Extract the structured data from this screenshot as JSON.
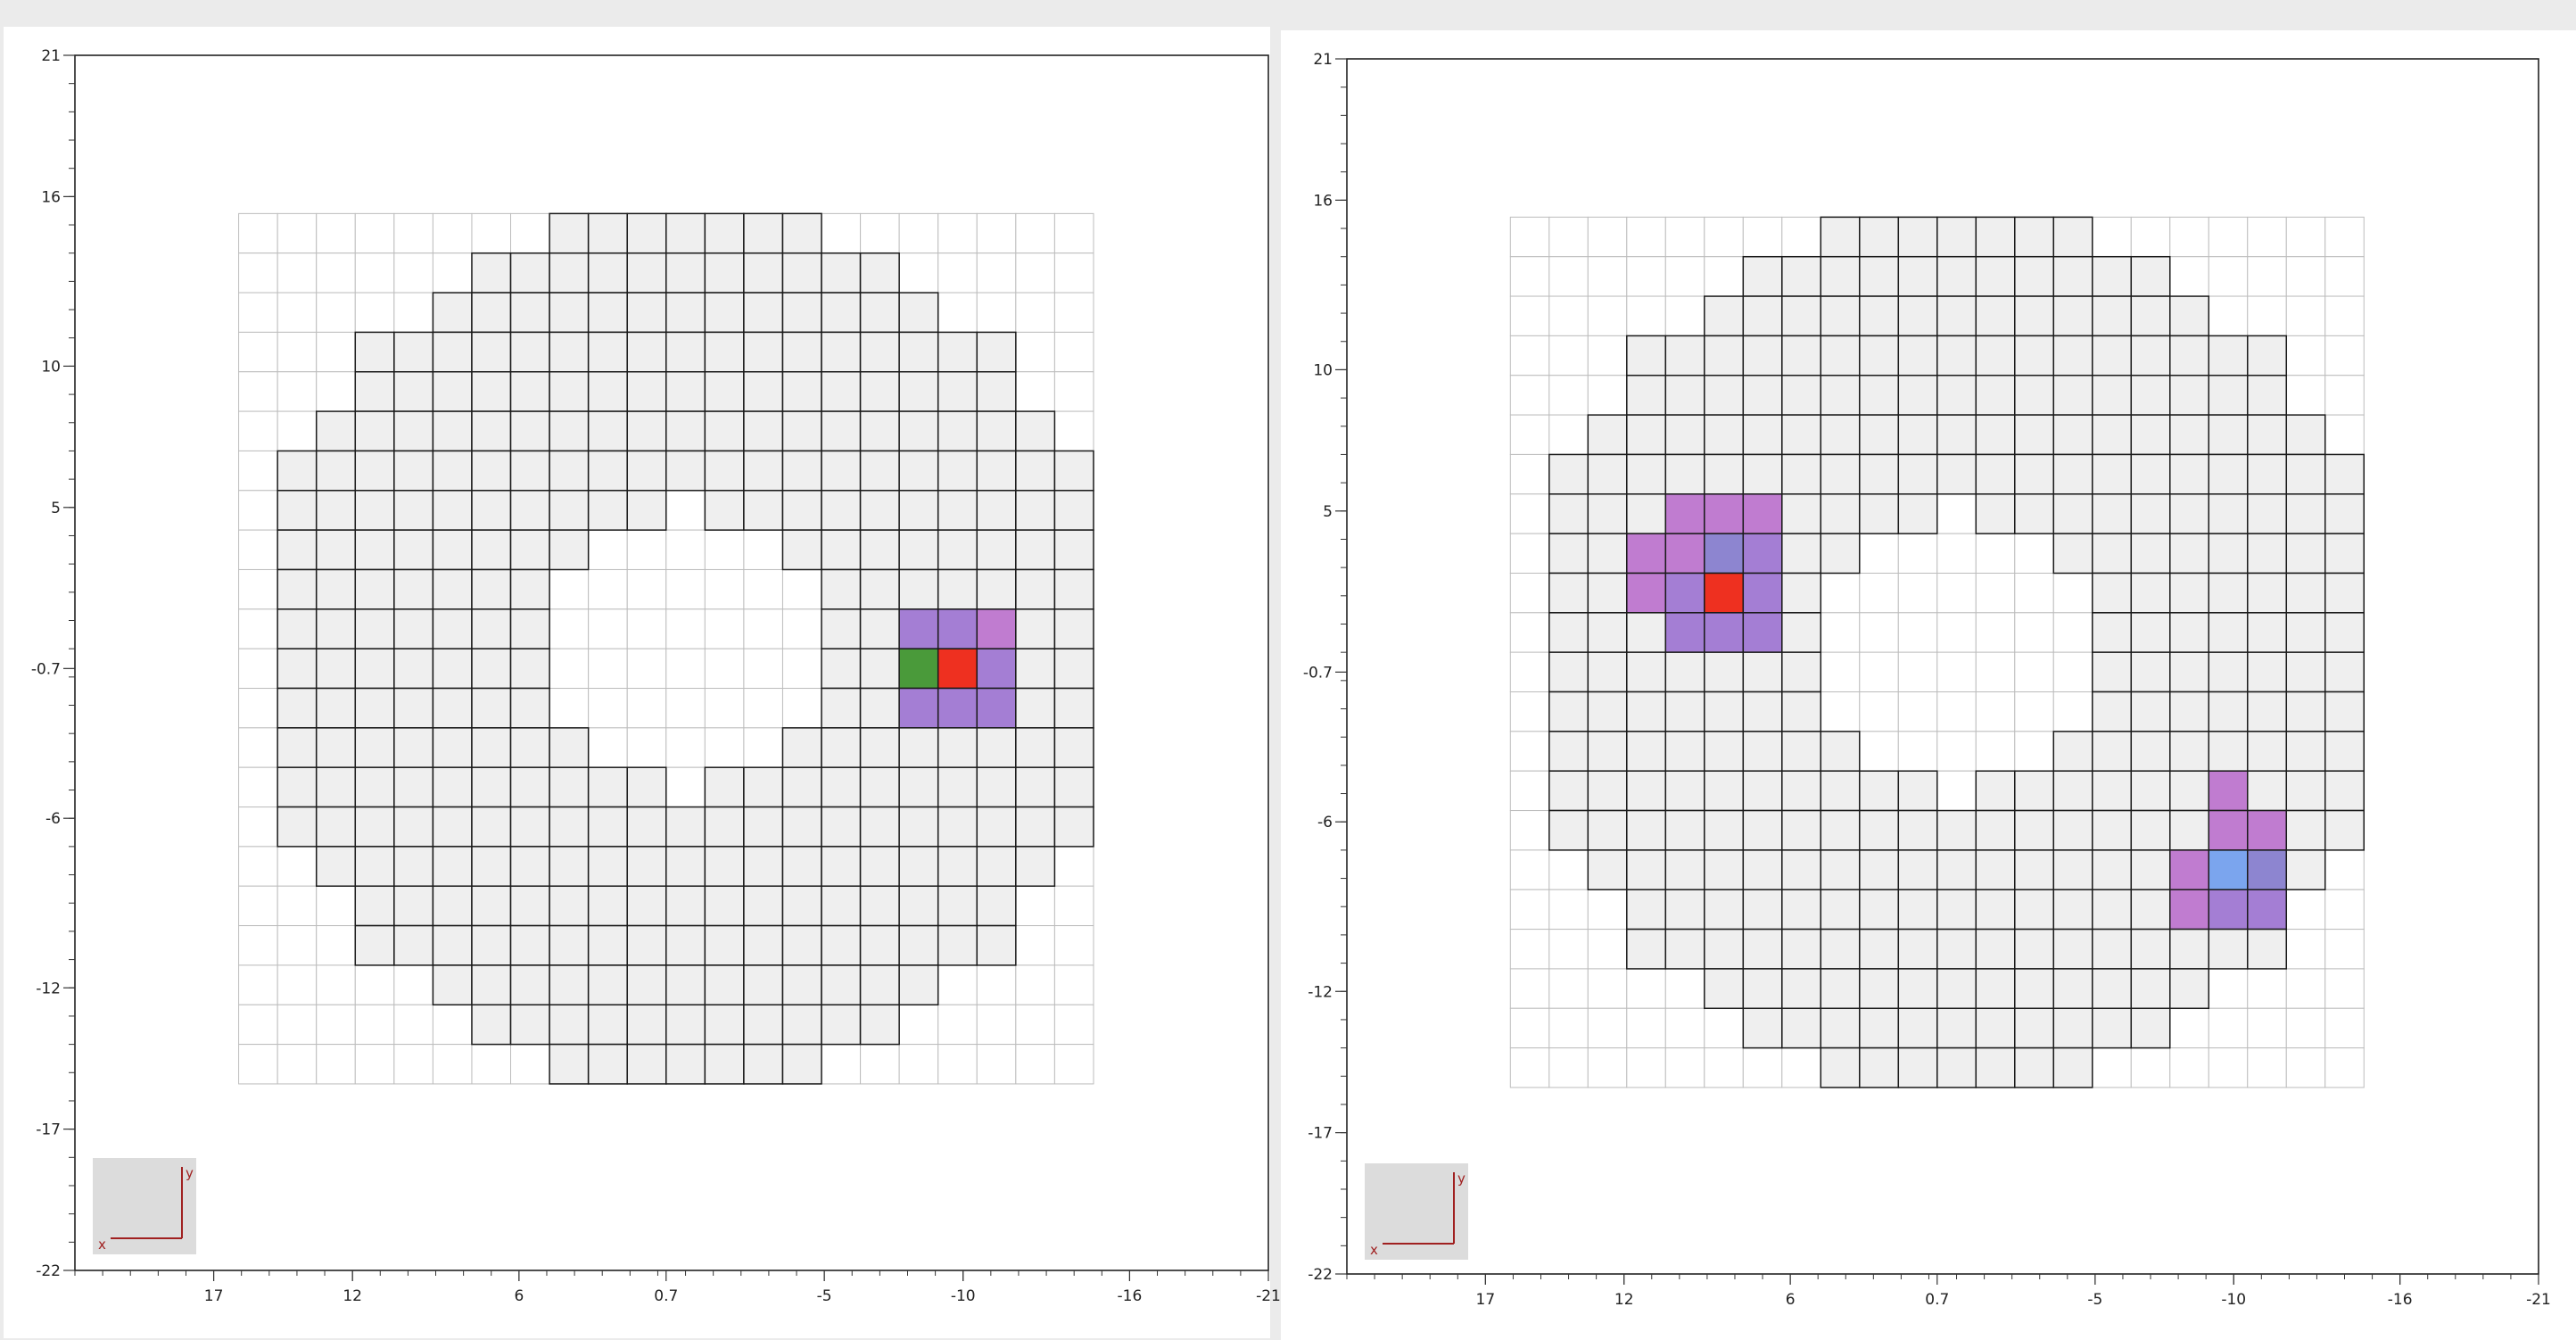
{
  "chart_data": [
    {
      "type": "heatmap",
      "title": "",
      "xlabel": "",
      "ylabel": "",
      "x_ticks": [
        "17",
        "12",
        "6",
        "0.7",
        "-5",
        "-10",
        "-16",
        "-21"
      ],
      "y_ticks": [
        "21",
        "16",
        "10",
        "5",
        "-0.7",
        "-6",
        "-12",
        "-17",
        "-22"
      ],
      "xlim": [
        22,
        -21
      ],
      "ylim": [
        -22,
        21
      ],
      "grid": {
        "cols": 22,
        "rows": 22,
        "cell_size": 1.4,
        "col0_center": 15.4,
        "row0_center": 14.7
      },
      "ring": {
        "inner_radius": 5.0,
        "outer_radius": 15.4
      },
      "cell_colors": {
        "default": "#efefef",
        "green": "#4a9a3a",
        "red": "#ee3020",
        "pink": "#c07cd0",
        "lavender": "#a47ed4",
        "periwinkle": "#8d85d0",
        "blue": "#7ba5ee"
      },
      "highlights": [
        {
          "col": 17,
          "row": 11,
          "color": "green"
        },
        {
          "col": 18,
          "row": 11,
          "color": "red"
        },
        {
          "col": 17,
          "row": 10,
          "color": "lavender"
        },
        {
          "col": 18,
          "row": 10,
          "color": "lavender"
        },
        {
          "col": 19,
          "row": 10,
          "color": "pink"
        },
        {
          "col": 19,
          "row": 11,
          "color": "lavender"
        },
        {
          "col": 17,
          "row": 12,
          "color": "lavender"
        },
        {
          "col": 18,
          "row": 12,
          "color": "lavender"
        },
        {
          "col": 19,
          "row": 12,
          "color": "lavender"
        }
      ],
      "axis_gizmo": {
        "x": "x",
        "y": "y"
      }
    },
    {
      "type": "heatmap",
      "title": "",
      "xlabel": "",
      "ylabel": "",
      "x_ticks": [
        "17",
        "12",
        "6",
        "0.7",
        "-5",
        "-10",
        "-16",
        "-21"
      ],
      "y_ticks": [
        "21",
        "16",
        "10",
        "5",
        "-0.7",
        "-6",
        "-12",
        "-17",
        "-22"
      ],
      "xlim": [
        22,
        -21
      ],
      "ylim": [
        -22,
        21
      ],
      "grid": {
        "cols": 22,
        "rows": 22,
        "cell_size": 1.4,
        "col0_center": 15.4,
        "row0_center": 14.7
      },
      "ring": {
        "inner_radius": 5.0,
        "outer_radius": 15.4
      },
      "cell_colors": {
        "default": "#efefef",
        "green": "#4a9a3a",
        "red": "#ee3020",
        "pink": "#c07cd0",
        "lavender": "#a47ed4",
        "periwinkle": "#8d85d0",
        "blue": "#7ba5ee"
      },
      "highlights": [
        {
          "col": 4,
          "row": 7,
          "color": "pink"
        },
        {
          "col": 5,
          "row": 7,
          "color": "pink"
        },
        {
          "col": 6,
          "row": 7,
          "color": "pink"
        },
        {
          "col": 3,
          "row": 8,
          "color": "pink"
        },
        {
          "col": 4,
          "row": 8,
          "color": "pink"
        },
        {
          "col": 5,
          "row": 8,
          "color": "periwinkle"
        },
        {
          "col": 6,
          "row": 8,
          "color": "lavender"
        },
        {
          "col": 3,
          "row": 9,
          "color": "pink"
        },
        {
          "col": 4,
          "row": 9,
          "color": "lavender"
        },
        {
          "col": 5,
          "row": 9,
          "color": "red"
        },
        {
          "col": 6,
          "row": 9,
          "color": "lavender"
        },
        {
          "col": 4,
          "row": 10,
          "color": "lavender"
        },
        {
          "col": 5,
          "row": 10,
          "color": "lavender"
        },
        {
          "col": 6,
          "row": 10,
          "color": "lavender"
        },
        {
          "col": 18,
          "row": 14,
          "color": "pink"
        },
        {
          "col": 18,
          "row": 15,
          "color": "pink"
        },
        {
          "col": 19,
          "row": 15,
          "color": "pink"
        },
        {
          "col": 17,
          "row": 16,
          "color": "pink"
        },
        {
          "col": 18,
          "row": 16,
          "color": "blue"
        },
        {
          "col": 19,
          "row": 16,
          "color": "periwinkle"
        },
        {
          "col": 17,
          "row": 17,
          "color": "pink"
        },
        {
          "col": 18,
          "row": 17,
          "color": "lavender"
        },
        {
          "col": 19,
          "row": 17,
          "color": "lavender"
        }
      ],
      "axis_gizmo": {
        "x": "x",
        "y": "y"
      }
    }
  ]
}
